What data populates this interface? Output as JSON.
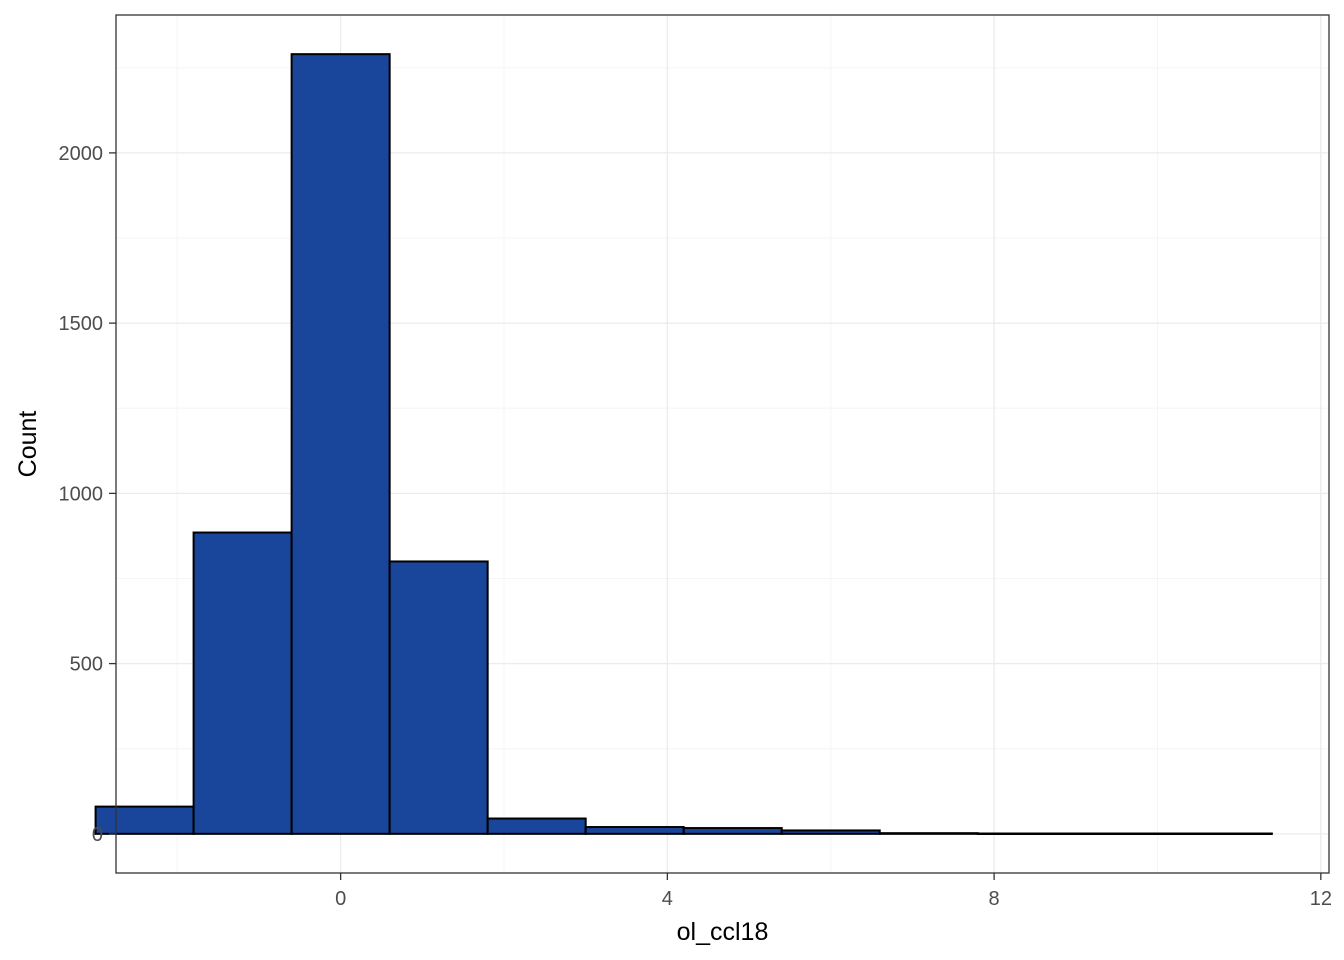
{
  "chart_data": {
    "type": "bar",
    "subtype": "histogram",
    "title": "",
    "xlabel": "ol_ccl18",
    "ylabel": "Count",
    "xlim": [
      -2.75,
      12.1
    ],
    "ylim": [
      -115,
      2405
    ],
    "x_ticks": [
      0,
      4,
      8,
      12
    ],
    "x_tick_labels": [
      "0",
      "4",
      "8",
      "12"
    ],
    "y_ticks": [
      0,
      500,
      1000,
      1500,
      2000
    ],
    "y_tick_labels": [
      "0",
      "500",
      "1000",
      "1500",
      "2000"
    ],
    "grid": true,
    "legend": "none",
    "bins": [
      {
        "x0": -3.0,
        "x1": -1.8,
        "count": 80
      },
      {
        "x0": -1.8,
        "x1": -0.6,
        "count": 885
      },
      {
        "x0": -0.6,
        "x1": 0.6,
        "count": 2290
      },
      {
        "x0": 0.6,
        "x1": 1.8,
        "count": 800
      },
      {
        "x0": 1.8,
        "x1": 3.0,
        "count": 45
      },
      {
        "x0": 3.0,
        "x1": 4.2,
        "count": 20
      },
      {
        "x0": 4.2,
        "x1": 5.4,
        "count": 17
      },
      {
        "x0": 5.4,
        "x1": 6.6,
        "count": 10
      },
      {
        "x0": 6.6,
        "x1": 7.8,
        "count": 2
      },
      {
        "x0": 7.8,
        "x1": 9.0,
        "count": 1
      },
      {
        "x0": 9.0,
        "x1": 10.2,
        "count": 1
      },
      {
        "x0": 10.2,
        "x1": 11.4,
        "count": 1
      }
    ],
    "colors": {
      "bar_fill": "#19459a",
      "bar_stroke": "#000000",
      "grid_major": "#ebebeb",
      "grid_minor": "#f5f5f5",
      "panel_border": "#333333",
      "tick_text": "#4d4d4d"
    }
  }
}
